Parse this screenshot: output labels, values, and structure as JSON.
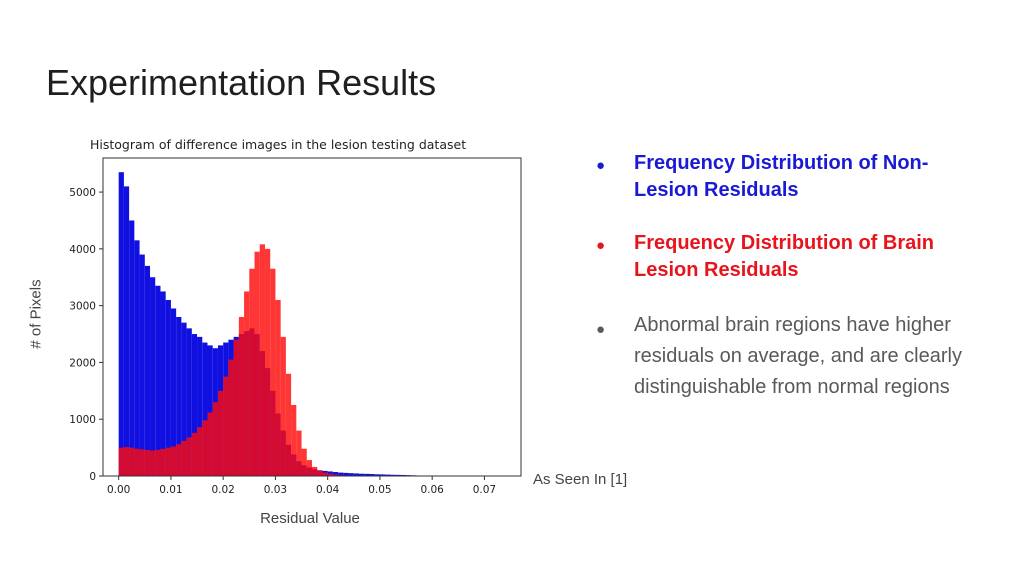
{
  "slide": {
    "title": "Experimentation Results",
    "source_note": "As Seen In [1]",
    "ylabel_outer": "# of Pixels",
    "xlabel_outer": "Residual Value"
  },
  "bullets": [
    {
      "text": "Frequency Distribution of Non-Lesion Residuals",
      "color": "#1a1ad6"
    },
    {
      "text": "Frequency Distribution of Brain Lesion Residuals",
      "color": "#e8141c"
    },
    {
      "text": "Abnormal brain regions have higher residuals on average, and are clearly distinguishable from normal regions",
      "color": "#595959"
    }
  ],
  "chart_data": {
    "type": "bar",
    "title": "Histogram of difference images in the lesion testing dataset",
    "xlabel": "",
    "ylabel": "",
    "xlim": [
      -0.003,
      0.077
    ],
    "ylim": [
      0,
      5600
    ],
    "xticks": [
      "0.00",
      "0.01",
      "0.02",
      "0.03",
      "0.04",
      "0.05",
      "0.06",
      "0.07"
    ],
    "yticks": [
      "0",
      "1000",
      "2000",
      "3000",
      "4000",
      "5000"
    ],
    "bin_width": 0.001,
    "grid": false,
    "series": [
      {
        "color": "#1010e0",
        "x": [
          0.0,
          0.001,
          0.002,
          0.003,
          0.004,
          0.005,
          0.006,
          0.007,
          0.008,
          0.009,
          0.01,
          0.011,
          0.012,
          0.013,
          0.014,
          0.015,
          0.016,
          0.017,
          0.018,
          0.019,
          0.02,
          0.021,
          0.022,
          0.023,
          0.024,
          0.025,
          0.026,
          0.027,
          0.028,
          0.029,
          0.03,
          0.031,
          0.032,
          0.033,
          0.034,
          0.035,
          0.036,
          0.037,
          0.038,
          0.039,
          0.04,
          0.041,
          0.042,
          0.043,
          0.044,
          0.045,
          0.046,
          0.047,
          0.048,
          0.049,
          0.05,
          0.051,
          0.052,
          0.053,
          0.054,
          0.055,
          0.056
        ],
        "values": [
          5350,
          5100,
          4500,
          4150,
          3900,
          3700,
          3500,
          3350,
          3250,
          3100,
          2950,
          2800,
          2700,
          2600,
          2500,
          2450,
          2350,
          2300,
          2250,
          2300,
          2350,
          2400,
          2450,
          2500,
          2550,
          2600,
          2500,
          2200,
          1900,
          1500,
          1100,
          800,
          550,
          380,
          260,
          190,
          150,
          120,
          100,
          90,
          80,
          70,
          60,
          55,
          50,
          45,
          40,
          38,
          35,
          30,
          28,
          25,
          22,
          20,
          18,
          15,
          12
        ]
      },
      {
        "color": "#ff0a0a",
        "x": [
          0.0,
          0.001,
          0.002,
          0.003,
          0.004,
          0.005,
          0.006,
          0.007,
          0.008,
          0.009,
          0.01,
          0.011,
          0.012,
          0.013,
          0.014,
          0.015,
          0.016,
          0.017,
          0.018,
          0.019,
          0.02,
          0.021,
          0.022,
          0.023,
          0.024,
          0.025,
          0.026,
          0.027,
          0.028,
          0.029,
          0.03,
          0.031,
          0.032,
          0.033,
          0.034,
          0.035,
          0.036,
          0.037,
          0.038,
          0.039,
          0.04,
          0.041,
          0.042,
          0.043,
          0.044,
          0.045
        ],
        "values": [
          500,
          510,
          500,
          480,
          470,
          460,
          450,
          460,
          480,
          500,
          520,
          560,
          620,
          680,
          760,
          860,
          980,
          1120,
          1300,
          1500,
          1750,
          2050,
          2400,
          2800,
          3250,
          3650,
          3950,
          4080,
          4000,
          3650,
          3100,
          2450,
          1800,
          1250,
          800,
          480,
          280,
          160,
          100,
          60,
          40,
          25,
          15,
          10,
          5,
          3
        ]
      }
    ]
  }
}
